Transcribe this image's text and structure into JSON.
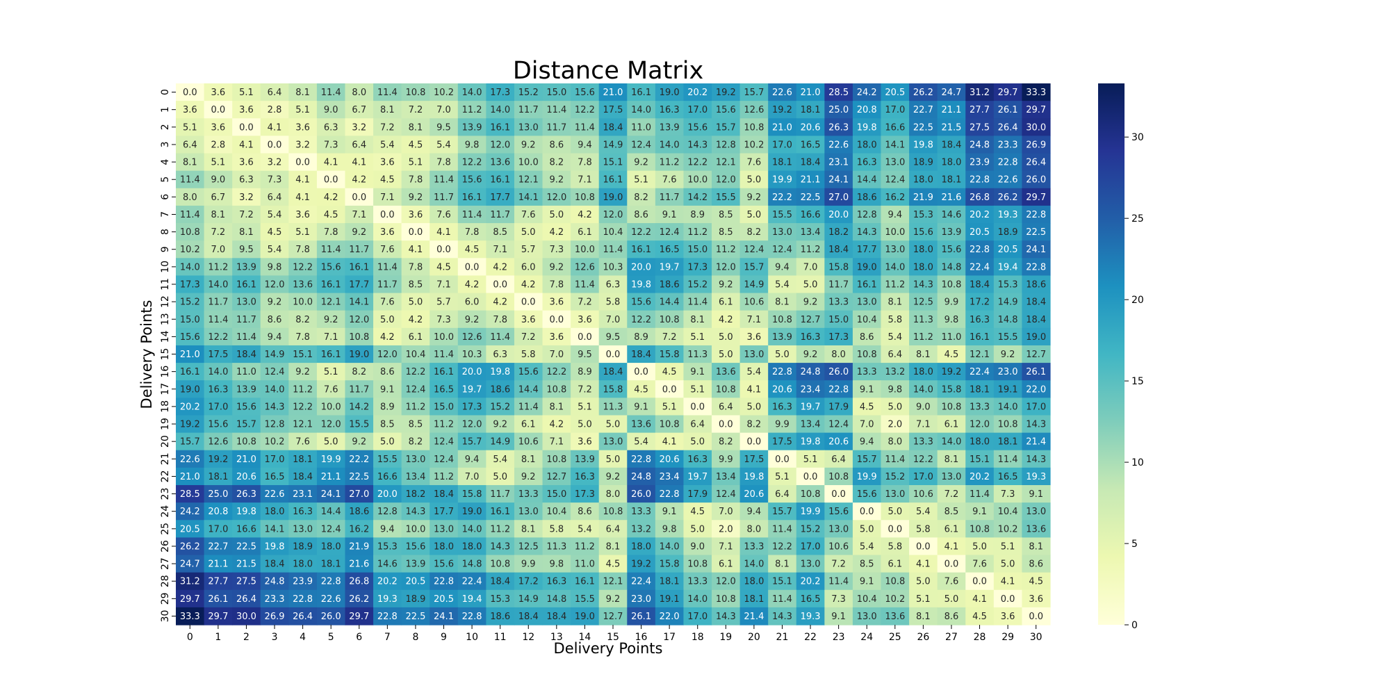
{
  "chart_data": {
    "type": "heatmap",
    "title": "Distance Matrix",
    "xlabel": "Delivery Points",
    "ylabel": "Delivery Points",
    "x_categories": [
      "0",
      "1",
      "2",
      "3",
      "4",
      "5",
      "6",
      "7",
      "8",
      "9",
      "10",
      "11",
      "12",
      "13",
      "14",
      "15",
      "16",
      "17",
      "18",
      "19",
      "20",
      "21",
      "22",
      "23",
      "24",
      "25",
      "26",
      "27",
      "28",
      "29",
      "30"
    ],
    "y_categories": [
      "0",
      "1",
      "2",
      "3",
      "4",
      "5",
      "6",
      "7",
      "8",
      "9",
      "10",
      "11",
      "12",
      "13",
      "14",
      "15",
      "16",
      "17",
      "18",
      "19",
      "20",
      "21",
      "22",
      "23",
      "24",
      "25",
      "26",
      "27",
      "28",
      "29",
      "30"
    ],
    "values": [
      [
        0.0,
        3.6,
        5.1,
        6.4,
        8.1,
        11.4,
        8.0,
        11.4,
        10.8,
        10.2,
        14.0,
        17.3,
        15.2,
        15.0,
        15.6,
        21.0,
        16.1,
        19.0,
        20.2,
        19.2,
        15.7,
        22.6,
        21.0,
        28.5,
        24.2,
        20.5,
        26.2,
        24.7,
        31.2,
        29.7,
        33.3
      ],
      [
        3.6,
        0.0,
        3.6,
        2.8,
        5.1,
        9.0,
        6.7,
        8.1,
        7.2,
        7.0,
        11.2,
        14.0,
        11.7,
        11.4,
        12.2,
        17.5,
        14.0,
        16.3,
        17.0,
        15.6,
        12.6,
        19.2,
        18.1,
        25.0,
        20.8,
        17.0,
        22.7,
        21.1,
        27.7,
        26.1,
        29.7
      ],
      [
        5.1,
        3.6,
        0.0,
        4.1,
        3.6,
        6.3,
        3.2,
        7.2,
        8.1,
        9.5,
        13.9,
        16.1,
        13.0,
        11.7,
        11.4,
        18.4,
        11.0,
        13.9,
        15.6,
        15.7,
        10.8,
        21.0,
        20.6,
        26.3,
        19.8,
        16.6,
        22.5,
        21.5,
        27.5,
        26.4,
        30.0
      ],
      [
        6.4,
        2.8,
        4.1,
        0.0,
        3.2,
        7.3,
        6.4,
        5.4,
        4.5,
        5.4,
        9.8,
        12.0,
        9.2,
        8.6,
        9.4,
        14.9,
        12.4,
        14.0,
        14.3,
        12.8,
        10.2,
        17.0,
        16.5,
        22.6,
        18.0,
        14.1,
        19.8,
        18.4,
        24.8,
        23.3,
        26.9
      ],
      [
        8.1,
        5.1,
        3.6,
        3.2,
        0.0,
        4.1,
        4.1,
        3.6,
        5.1,
        7.8,
        12.2,
        13.6,
        10.0,
        8.2,
        7.8,
        15.1,
        9.2,
        11.2,
        12.2,
        12.1,
        7.6,
        18.1,
        18.4,
        23.1,
        16.3,
        13.0,
        18.9,
        18.0,
        23.9,
        22.8,
        26.4
      ],
      [
        11.4,
        9.0,
        6.3,
        7.3,
        4.1,
        0.0,
        4.2,
        4.5,
        7.8,
        11.4,
        15.6,
        16.1,
        12.1,
        9.2,
        7.1,
        16.1,
        5.1,
        7.6,
        10.0,
        12.0,
        5.0,
        19.9,
        21.1,
        24.1,
        14.4,
        12.4,
        18.0,
        18.1,
        22.8,
        22.6,
        26.0
      ],
      [
        8.0,
        6.7,
        3.2,
        6.4,
        4.1,
        4.2,
        0.0,
        7.1,
        9.2,
        11.7,
        16.1,
        17.7,
        14.1,
        12.0,
        10.8,
        19.0,
        8.2,
        11.7,
        14.2,
        15.5,
        9.2,
        22.2,
        22.5,
        27.0,
        18.6,
        16.2,
        21.9,
        21.6,
        26.8,
        26.2,
        29.7
      ],
      [
        11.4,
        8.1,
        7.2,
        5.4,
        3.6,
        4.5,
        7.1,
        0.0,
        3.6,
        7.6,
        11.4,
        11.7,
        7.6,
        5.0,
        4.2,
        12.0,
        8.6,
        9.1,
        8.9,
        8.5,
        5.0,
        15.5,
        16.6,
        20.0,
        12.8,
        9.4,
        15.3,
        14.6,
        20.2,
        19.3,
        22.8
      ],
      [
        10.8,
        7.2,
        8.1,
        4.5,
        5.1,
        7.8,
        9.2,
        3.6,
        0.0,
        4.1,
        7.8,
        8.5,
        5.0,
        4.2,
        6.1,
        10.4,
        12.2,
        12.4,
        11.2,
        8.5,
        8.2,
        13.0,
        13.4,
        18.2,
        14.3,
        10.0,
        15.6,
        13.9,
        20.5,
        18.9,
        22.5
      ],
      [
        10.2,
        7.0,
        9.5,
        5.4,
        7.8,
        11.4,
        11.7,
        7.6,
        4.1,
        0.0,
        4.5,
        7.1,
        5.7,
        7.3,
        10.0,
        11.4,
        16.1,
        16.5,
        15.0,
        11.2,
        12.4,
        12.4,
        11.2,
        18.4,
        17.7,
        13.0,
        18.0,
        15.6,
        22.8,
        20.5,
        24.1
      ],
      [
        14.0,
        11.2,
        13.9,
        9.8,
        12.2,
        15.6,
        16.1,
        11.4,
        7.8,
        4.5,
        0.0,
        4.2,
        6.0,
        9.2,
        12.6,
        10.3,
        20.0,
        19.7,
        17.3,
        12.0,
        15.7,
        9.4,
        7.0,
        15.8,
        19.0,
        14.0,
        18.0,
        14.8,
        22.4,
        19.4,
        22.8
      ],
      [
        17.3,
        14.0,
        16.1,
        12.0,
        13.6,
        16.1,
        17.7,
        11.7,
        8.5,
        7.1,
        4.2,
        0.0,
        4.2,
        7.8,
        11.4,
        6.3,
        19.8,
        18.6,
        15.2,
        9.2,
        14.9,
        5.4,
        5.0,
        11.7,
        16.1,
        11.2,
        14.3,
        10.8,
        18.4,
        15.3,
        18.6
      ],
      [
        15.2,
        11.7,
        13.0,
        9.2,
        10.0,
        12.1,
        14.1,
        7.6,
        5.0,
        5.7,
        6.0,
        4.2,
        0.0,
        3.6,
        7.2,
        5.8,
        15.6,
        14.4,
        11.4,
        6.1,
        10.6,
        8.1,
        9.2,
        13.3,
        13.0,
        8.1,
        12.5,
        9.9,
        17.2,
        14.9,
        18.4
      ],
      [
        15.0,
        11.4,
        11.7,
        8.6,
        8.2,
        9.2,
        12.0,
        5.0,
        4.2,
        7.3,
        9.2,
        7.8,
        3.6,
        0.0,
        3.6,
        7.0,
        12.2,
        10.8,
        8.1,
        4.2,
        7.1,
        10.8,
        12.7,
        15.0,
        10.4,
        5.8,
        11.3,
        9.8,
        16.3,
        14.8,
        18.4
      ],
      [
        15.6,
        12.2,
        11.4,
        9.4,
        7.8,
        7.1,
        10.8,
        4.2,
        6.1,
        10.0,
        12.6,
        11.4,
        7.2,
        3.6,
        0.0,
        9.5,
        8.9,
        7.2,
        5.1,
        5.0,
        3.6,
        13.9,
        16.3,
        17.3,
        8.6,
        5.4,
        11.2,
        11.0,
        16.1,
        15.5,
        19.0
      ],
      [
        21.0,
        17.5,
        18.4,
        14.9,
        15.1,
        16.1,
        19.0,
        12.0,
        10.4,
        11.4,
        10.3,
        6.3,
        5.8,
        7.0,
        9.5,
        0.0,
        18.4,
        15.8,
        11.3,
        5.0,
        13.0,
        5.0,
        9.2,
        8.0,
        10.8,
        6.4,
        8.1,
        4.5,
        12.1,
        9.2,
        12.7
      ],
      [
        16.1,
        14.0,
        11.0,
        12.4,
        9.2,
        5.1,
        8.2,
        8.6,
        12.2,
        16.1,
        20.0,
        19.8,
        15.6,
        12.2,
        8.9,
        18.4,
        0.0,
        4.5,
        9.1,
        13.6,
        5.4,
        22.8,
        24.8,
        26.0,
        13.3,
        13.2,
        18.0,
        19.2,
        22.4,
        23.0,
        26.1
      ],
      [
        19.0,
        16.3,
        13.9,
        14.0,
        11.2,
        7.6,
        11.7,
        9.1,
        12.4,
        16.5,
        19.7,
        18.6,
        14.4,
        10.8,
        7.2,
        15.8,
        4.5,
        0.0,
        5.1,
        10.8,
        4.1,
        20.6,
        23.4,
        22.8,
        9.1,
        9.8,
        14.0,
        15.8,
        18.1,
        19.1,
        22.0
      ],
      [
        20.2,
        17.0,
        15.6,
        14.3,
        12.2,
        10.0,
        14.2,
        8.9,
        11.2,
        15.0,
        17.3,
        15.2,
        11.4,
        8.1,
        5.1,
        11.3,
        9.1,
        5.1,
        0.0,
        6.4,
        5.0,
        16.3,
        19.7,
        17.9,
        4.5,
        5.0,
        9.0,
        10.8,
        13.3,
        14.0,
        17.0
      ],
      [
        19.2,
        15.6,
        15.7,
        12.8,
        12.1,
        12.0,
        15.5,
        8.5,
        8.5,
        11.2,
        12.0,
        9.2,
        6.1,
        4.2,
        5.0,
        5.0,
        13.6,
        10.8,
        6.4,
        0.0,
        8.2,
        9.9,
        13.4,
        12.4,
        7.0,
        2.0,
        7.1,
        6.1,
        12.0,
        10.8,
        14.3
      ],
      [
        15.7,
        12.6,
        10.8,
        10.2,
        7.6,
        5.0,
        9.2,
        5.0,
        8.2,
        12.4,
        15.7,
        14.9,
        10.6,
        7.1,
        3.6,
        13.0,
        5.4,
        4.1,
        5.0,
        8.2,
        0.0,
        17.5,
        19.8,
        20.6,
        9.4,
        8.0,
        13.3,
        14.0,
        18.0,
        18.1,
        21.4
      ],
      [
        22.6,
        19.2,
        21.0,
        17.0,
        18.1,
        19.9,
        22.2,
        15.5,
        13.0,
        12.4,
        9.4,
        5.4,
        8.1,
        10.8,
        13.9,
        5.0,
        22.8,
        20.6,
        16.3,
        9.9,
        17.5,
        0.0,
        5.1,
        6.4,
        15.7,
        11.4,
        12.2,
        8.1,
        15.1,
        11.4,
        14.3
      ],
      [
        21.0,
        18.1,
        20.6,
        16.5,
        18.4,
        21.1,
        22.5,
        16.6,
        13.4,
        11.2,
        7.0,
        5.0,
        9.2,
        12.7,
        16.3,
        9.2,
        24.8,
        23.4,
        19.7,
        13.4,
        19.8,
        5.1,
        0.0,
        10.8,
        19.9,
        15.2,
        17.0,
        13.0,
        20.2,
        16.5,
        19.3
      ],
      [
        28.5,
        25.0,
        26.3,
        22.6,
        23.1,
        24.1,
        27.0,
        20.0,
        18.2,
        18.4,
        15.8,
        11.7,
        13.3,
        15.0,
        17.3,
        8.0,
        26.0,
        22.8,
        17.9,
        12.4,
        20.6,
        6.4,
        10.8,
        0.0,
        15.6,
        13.0,
        10.6,
        7.2,
        11.4,
        7.3,
        9.1
      ],
      [
        24.2,
        20.8,
        19.8,
        18.0,
        16.3,
        14.4,
        18.6,
        12.8,
        14.3,
        17.7,
        19.0,
        16.1,
        13.0,
        10.4,
        8.6,
        10.8,
        13.3,
        9.1,
        4.5,
        7.0,
        9.4,
        15.7,
        19.9,
        15.6,
        0.0,
        5.0,
        5.4,
        8.5,
        9.1,
        10.4,
        13.0
      ],
      [
        20.5,
        17.0,
        16.6,
        14.1,
        13.0,
        12.4,
        16.2,
        9.4,
        10.0,
        13.0,
        14.0,
        11.2,
        8.1,
        5.8,
        5.4,
        6.4,
        13.2,
        9.8,
        5.0,
        2.0,
        8.0,
        11.4,
        15.2,
        13.0,
        5.0,
        0.0,
        5.8,
        6.1,
        10.8,
        10.2,
        13.6
      ],
      [
        26.2,
        22.7,
        22.5,
        19.8,
        18.9,
        18.0,
        21.9,
        15.3,
        15.6,
        18.0,
        18.0,
        14.3,
        12.5,
        11.3,
        11.2,
        8.1,
        18.0,
        14.0,
        9.0,
        7.1,
        13.3,
        12.2,
        17.0,
        10.6,
        5.4,
        5.8,
        0.0,
        4.1,
        5.0,
        5.1,
        8.1
      ],
      [
        24.7,
        21.1,
        21.5,
        18.4,
        18.0,
        18.1,
        21.6,
        14.6,
        13.9,
        15.6,
        14.8,
        10.8,
        9.9,
        9.8,
        11.0,
        4.5,
        19.2,
        15.8,
        10.8,
        6.1,
        14.0,
        8.1,
        13.0,
        7.2,
        8.5,
        6.1,
        4.1,
        0.0,
        7.6,
        5.0,
        8.6
      ],
      [
        31.2,
        27.7,
        27.5,
        24.8,
        23.9,
        22.8,
        26.8,
        20.2,
        20.5,
        22.8,
        22.4,
        18.4,
        17.2,
        16.3,
        16.1,
        12.1,
        22.4,
        18.1,
        13.3,
        12.0,
        18.0,
        15.1,
        20.2,
        11.4,
        9.1,
        10.8,
        5.0,
        7.6,
        0.0,
        4.1,
        4.5
      ],
      [
        29.7,
        26.1,
        26.4,
        23.3,
        22.8,
        22.6,
        26.2,
        19.3,
        18.9,
        20.5,
        19.4,
        15.3,
        14.9,
        14.8,
        15.5,
        9.2,
        23.0,
        19.1,
        14.0,
        10.8,
        18.1,
        11.4,
        16.5,
        7.3,
        10.4,
        10.2,
        5.1,
        5.0,
        4.1,
        0.0,
        3.6
      ],
      [
        33.3,
        29.7,
        30.0,
        26.9,
        26.4,
        26.0,
        29.7,
        22.8,
        22.5,
        24.1,
        22.8,
        18.6,
        18.4,
        18.4,
        19.0,
        12.7,
        26.1,
        22.0,
        17.0,
        14.3,
        21.4,
        14.3,
        19.3,
        9.1,
        13.0,
        13.6,
        8.1,
        8.6,
        4.5,
        3.6,
        0.0
      ]
    ],
    "vmin": 0,
    "vmax": 33.3,
    "colormap": "YlGnBu",
    "colorbar_ticks": [
      0,
      5,
      10,
      15,
      20,
      25,
      30
    ],
    "annotated": true,
    "value_format": "one decimal"
  }
}
